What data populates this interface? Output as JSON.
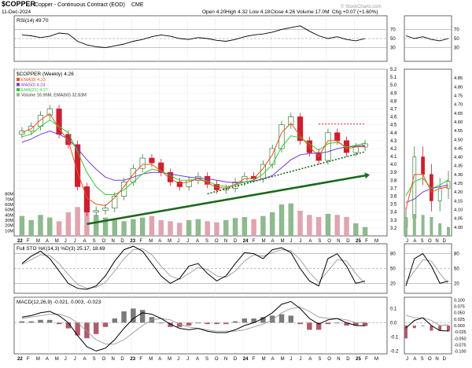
{
  "header": {
    "symbol": "$COPPER",
    "description": "Copper - Continuous Contract (EOD)",
    "exchange": "CME",
    "date": "11-Dec-2024",
    "ohlc": {
      "open": "Open 4.20",
      "high": "High 4.32",
      "low": "Low 4.18",
      "close": "Close 4.26",
      "volume": "Volume 17.0M",
      "chg": "Chg +0.07 (+1.60%)"
    },
    "watermark": "© StockCharts.com"
  },
  "colors": {
    "bull": "#3a7a3a",
    "bear": "#cc1f2f",
    "ema8": "#e8541c",
    "ma50": "#7a3ad0",
    "ema21": "#33cc33",
    "trend": "#1a6a1a",
    "resistance": "#e00000",
    "vol_up": "#8fb98f",
    "vol_down": "#e0a4b0",
    "osc_line": "#000000",
    "osc_signal": "#9a9a9a",
    "panel_bg": "#ffffff",
    "border": "#444444"
  },
  "chart_data": [
    {
      "type": "line",
      "id": "rsi",
      "title": "RSI(14) 49.70",
      "ylim": [
        0,
        100
      ],
      "yticks": [
        30,
        50,
        70
      ],
      "hlines": [
        30,
        50,
        70
      ],
      "x": [
        0,
        1,
        2,
        3,
        4,
        5,
        6,
        7,
        8,
        9,
        10,
        11,
        12,
        13,
        14,
        15,
        16,
        17,
        18,
        19,
        20,
        21,
        22,
        23,
        24,
        25,
        26,
        27,
        28,
        29,
        30,
        31,
        32,
        33,
        34,
        35,
        36,
        37
      ],
      "values": [
        58,
        56,
        52,
        55,
        62,
        60,
        44,
        36,
        32,
        30,
        34,
        38,
        44,
        48,
        54,
        58,
        55,
        50,
        48,
        52,
        50,
        46,
        44,
        48,
        54,
        58,
        60,
        64,
        70,
        74,
        78,
        66,
        56,
        50,
        54,
        48,
        45,
        50
      ]
    },
    {
      "type": "line",
      "id": "price",
      "title": "$COPPER (Weekly) 4.26",
      "legend": [
        "EMA(8) 4.23",
        "MA(50) 4.24",
        "EMA(21) 4.27",
        "Volume 16.96M, EMA(60) 32.83M"
      ],
      "ylim": [
        3.1,
        5.2
      ],
      "yticks": [
        3.2,
        3.3,
        3.4,
        3.5,
        3.6,
        3.7,
        3.8,
        3.9,
        4.0,
        4.1,
        4.2,
        4.3,
        4.4,
        4.5,
        4.6,
        4.7,
        4.8,
        4.9,
        5.0,
        5.1,
        5.2
      ],
      "volume_ticks": [
        "10M",
        "20M",
        "30M",
        "40M",
        "50M",
        "60M",
        "70M",
        "80M"
      ],
      "x_labels": [
        "22",
        "F",
        "M",
        "A",
        "M",
        "J",
        "J",
        "A",
        "S",
        "O",
        "N",
        "D",
        "23",
        "F",
        "M",
        "A",
        "M",
        "J",
        "J",
        "A",
        "S",
        "O",
        "N",
        "D",
        "24",
        "F",
        "M",
        "A",
        "M",
        "J",
        "J",
        "A",
        "S",
        "O",
        "N",
        "D",
        "25",
        "F",
        "M"
      ],
      "x": [
        0,
        1,
        2,
        3,
        4,
        5,
        6,
        7,
        8,
        9,
        10,
        11,
        12,
        13,
        14,
        15,
        16,
        17,
        18,
        19,
        20,
        21,
        22,
        23,
        24,
        25,
        26,
        27,
        28,
        29,
        30,
        31,
        32,
        33,
        34,
        35,
        36,
        37
      ],
      "close": [
        4.42,
        4.48,
        4.62,
        4.7,
        4.38,
        4.25,
        3.72,
        3.4,
        3.42,
        3.45,
        3.6,
        3.78,
        3.95,
        4.08,
        4.02,
        3.9,
        3.78,
        3.72,
        3.8,
        3.85,
        3.75,
        3.68,
        3.7,
        3.78,
        3.85,
        3.82,
        4.0,
        4.2,
        4.5,
        4.6,
        4.3,
        4.15,
        4.05,
        4.4,
        4.3,
        4.15,
        4.22,
        4.26
      ],
      "ema8": [
        4.4,
        4.45,
        4.56,
        4.64,
        4.45,
        4.3,
        3.9,
        3.58,
        3.5,
        3.48,
        3.58,
        3.72,
        3.88,
        4.0,
        4.0,
        3.92,
        3.82,
        3.76,
        3.78,
        3.82,
        3.77,
        3.71,
        3.7,
        3.75,
        3.82,
        3.82,
        3.95,
        4.12,
        4.4,
        4.52,
        4.36,
        4.22,
        4.1,
        4.3,
        4.3,
        4.2,
        4.22,
        4.23
      ],
      "ema21": [
        4.35,
        4.38,
        4.48,
        4.56,
        4.48,
        4.4,
        4.16,
        3.9,
        3.72,
        3.62,
        3.62,
        3.68,
        3.78,
        3.88,
        3.94,
        3.92,
        3.86,
        3.8,
        3.8,
        3.82,
        3.79,
        3.74,
        3.72,
        3.74,
        3.78,
        3.8,
        3.88,
        4.0,
        4.22,
        4.36,
        4.34,
        4.26,
        4.18,
        4.26,
        4.28,
        4.22,
        4.24,
        4.27
      ],
      "ma50": [
        4.28,
        4.32,
        4.38,
        4.42,
        4.38,
        4.32,
        4.2,
        4.06,
        3.94,
        3.84,
        3.8,
        3.8,
        3.84,
        3.88,
        3.9,
        3.9,
        3.88,
        3.86,
        3.84,
        3.83,
        3.82,
        3.8,
        3.78,
        3.77,
        3.78,
        3.79,
        3.82,
        3.86,
        3.96,
        4.06,
        4.12,
        4.14,
        4.14,
        4.16,
        4.2,
        4.22,
        4.23,
        4.24
      ],
      "volume_m": [
        38,
        30,
        40,
        35,
        28,
        45,
        55,
        60,
        40,
        35,
        30,
        28,
        32,
        35,
        38,
        30,
        28,
        25,
        30,
        32,
        28,
        26,
        30,
        34,
        36,
        32,
        38,
        45,
        60,
        62,
        48,
        40,
        36,
        42,
        40,
        36,
        24,
        17
      ],
      "trendlines": [
        {
          "style": "arrow",
          "from": [
            7,
            3.25
          ],
          "to": [
            37,
            3.86
          ]
        },
        {
          "style": "dotted",
          "from": [
            20,
            3.63
          ],
          "to": [
            37,
            4.16
          ]
        }
      ],
      "resistance": {
        "y": 4.51,
        "from": 32,
        "to": 37
      }
    },
    {
      "type": "line",
      "id": "stoch",
      "title": "Full STO %K(14,3) %D(3) 25.17, 18.69",
      "ylim": [
        0,
        100
      ],
      "yticks": [
        20,
        50,
        80
      ],
      "hlines": [
        20,
        50,
        80
      ],
      "x": [
        0,
        1,
        2,
        3,
        4,
        5,
        6,
        7,
        8,
        9,
        10,
        11,
        12,
        13,
        14,
        15,
        16,
        17,
        18,
        19,
        20,
        21,
        22,
        23,
        24,
        25,
        26,
        27,
        28,
        29,
        30,
        31,
        32,
        33,
        34,
        35,
        36,
        37
      ],
      "k": [
        60,
        75,
        85,
        70,
        45,
        20,
        10,
        8,
        15,
        35,
        65,
        88,
        95,
        85,
        60,
        35,
        20,
        30,
        55,
        60,
        40,
        25,
        35,
        60,
        82,
        80,
        70,
        88,
        92,
        82,
        50,
        25,
        15,
        70,
        80,
        55,
        20,
        25
      ],
      "d": [
        58,
        68,
        78,
        76,
        60,
        38,
        18,
        10,
        12,
        22,
        45,
        70,
        88,
        90,
        78,
        55,
        35,
        28,
        40,
        52,
        48,
        35,
        32,
        45,
        65,
        78,
        75,
        82,
        88,
        86,
        68,
        42,
        22,
        45,
        68,
        65,
        40,
        19
      ]
    },
    {
      "type": "line",
      "id": "macd",
      "title": "MACD(12,26,9) -0.021, 0.003, -0.023",
      "ylim": [
        -0.22,
        0.18
      ],
      "yticks": [
        -0.2,
        -0.1,
        0.0,
        0.1
      ],
      "hlines": [
        0.0
      ],
      "x": [
        0,
        1,
        2,
        3,
        4,
        5,
        6,
        7,
        8,
        9,
        10,
        11,
        12,
        13,
        14,
        15,
        16,
        17,
        18,
        19,
        20,
        21,
        22,
        23,
        24,
        25,
        26,
        27,
        28,
        29,
        30,
        31,
        32,
        33,
        34,
        35,
        36,
        37
      ],
      "macd": [
        0.04,
        0.05,
        0.07,
        0.08,
        0.05,
        0.0,
        -0.09,
        -0.17,
        -0.2,
        -0.18,
        -0.12,
        -0.04,
        0.03,
        0.07,
        0.06,
        0.03,
        -0.01,
        -0.04,
        -0.05,
        -0.04,
        -0.06,
        -0.07,
        -0.07,
        -0.05,
        -0.02,
        0.0,
        0.03,
        0.07,
        0.13,
        0.15,
        0.1,
        0.03,
        -0.01,
        0.02,
        0.03,
        0.0,
        -0.02,
        -0.021
      ],
      "signal": [
        0.03,
        0.04,
        0.05,
        0.06,
        0.06,
        0.04,
        0.0,
        -0.06,
        -0.12,
        -0.15,
        -0.15,
        -0.12,
        -0.07,
        -0.02,
        0.02,
        0.03,
        0.02,
        -0.01,
        -0.03,
        -0.04,
        -0.05,
        -0.06,
        -0.06,
        -0.06,
        -0.05,
        -0.03,
        -0.01,
        0.02,
        0.07,
        0.1,
        0.11,
        0.08,
        0.04,
        0.03,
        0.03,
        0.02,
        0.0,
        0.003
      ],
      "histogram": [
        0.01,
        0.01,
        0.02,
        0.02,
        -0.01,
        -0.04,
        -0.09,
        -0.11,
        -0.08,
        -0.03,
        0.03,
        0.08,
        0.1,
        0.09,
        0.04,
        0.0,
        -0.03,
        -0.03,
        -0.02,
        0.0,
        -0.01,
        -0.01,
        -0.01,
        0.01,
        0.03,
        0.03,
        0.04,
        0.05,
        0.06,
        0.05,
        -0.01,
        -0.05,
        -0.05,
        -0.01,
        0.0,
        -0.02,
        -0.02,
        -0.023
      ]
    }
  ],
  "side": {
    "price_ticks": [
      "4.00",
      "4.05",
      "4.10",
      "4.15",
      "4.20",
      "4.25",
      "4.30",
      "4.35",
      "4.40",
      "4.45",
      "4.50",
      "4.55",
      "4.60",
      "4.65",
      "4.70",
      "4.75",
      "4.80",
      "4.85"
    ],
    "x_labels": [
      "J",
      "A",
      "S",
      "O",
      "N",
      "D"
    ],
    "stoch_ticks": [
      "20",
      "50",
      "80"
    ],
    "macd_ticks": [
      "-0.100",
      "-0.075",
      "-0.050",
      "-0.025",
      "0.000",
      "0.025",
      "0.050",
      "0.075",
      "0.100"
    ],
    "rsi_ticks": [
      "30",
      "50",
      "70"
    ]
  }
}
